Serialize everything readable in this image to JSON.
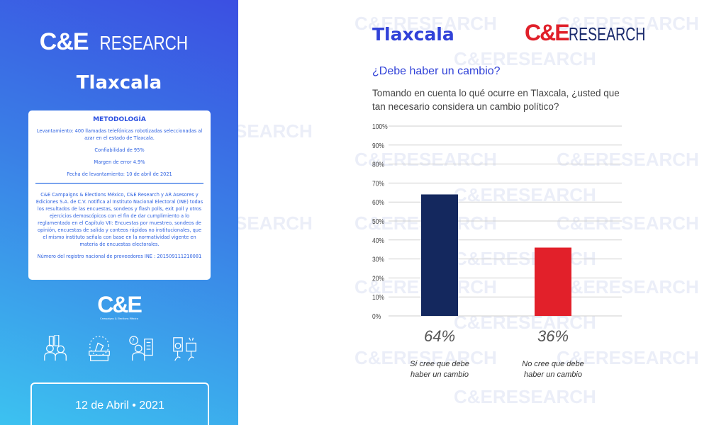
{
  "left_panel": {
    "logo": {
      "main": "C&E",
      "suffix": "RESEARCH"
    },
    "title": "Tlaxcala",
    "methodology": {
      "heading": "METODOLOGÍA",
      "survey": "Levantamiento: 400 llamadas telefónicas robotizadas seleccionadas al azar en el estado de Tlaxcala.",
      "confidence": "Confiabilidad de 95%",
      "margin": "Margen de error 4.9%",
      "date": "Fecha de levantamiento: 10 de abril de 2021",
      "notice": "C&E Campaigns & Elections México, C&E Research y AR Asesores y Ediciones S.A. de C.V. notifica al Instituto Nacional Electoral (INE) todas los resultados de las encuestas, sondeos y flash polls, exit poll y otros ejercicios demoscópicos con el fin de dar cumplimiento a lo reglamentado en el Capítulo VII: Encuestas por muestreo, sondeos de opinión, encuestas de salida y conteos rápidos no institucionales, que el mismo instituto señala con base en la normatividad vigente en materia de encuestas electorales.",
      "registry": "Número del registro nacional de proveedores INE : 201509111210081"
    },
    "small_logo": "C&E",
    "small_logo_sub": "Campaigns & Elections México",
    "date": "12 de Abril • 2021"
  },
  "right_panel": {
    "title": "Tlaxcala",
    "logo": {
      "main": "C&E",
      "suffix": "RESEARCH"
    },
    "question": "¿Debe haber un cambio?",
    "description": "Tomando en cuenta lo qué ocurre en Tlaxcala, ¿usted que tan necesario considera un cambio político?"
  },
  "watermark": "C&ERESEARCH",
  "chart_data": {
    "type": "bar",
    "categories": [
      "Sí cree que debe haber un cambio",
      "No cree que debe haber un cambio"
    ],
    "category_lines": [
      [
        "Sí cree que debe",
        "haber un cambio"
      ],
      [
        "No cree que debe",
        "haber un cambio"
      ]
    ],
    "values": [
      64,
      36
    ],
    "value_labels": [
      "64%",
      "36%"
    ],
    "colors": [
      "#14285e",
      "#e2202a"
    ],
    "yticks": [
      "0%",
      "10%",
      "20%",
      "30%",
      "40%",
      "50%",
      "60%",
      "70%",
      "80%",
      "90%",
      "100%"
    ],
    "ylim": [
      0,
      100
    ],
    "grid": true
  }
}
